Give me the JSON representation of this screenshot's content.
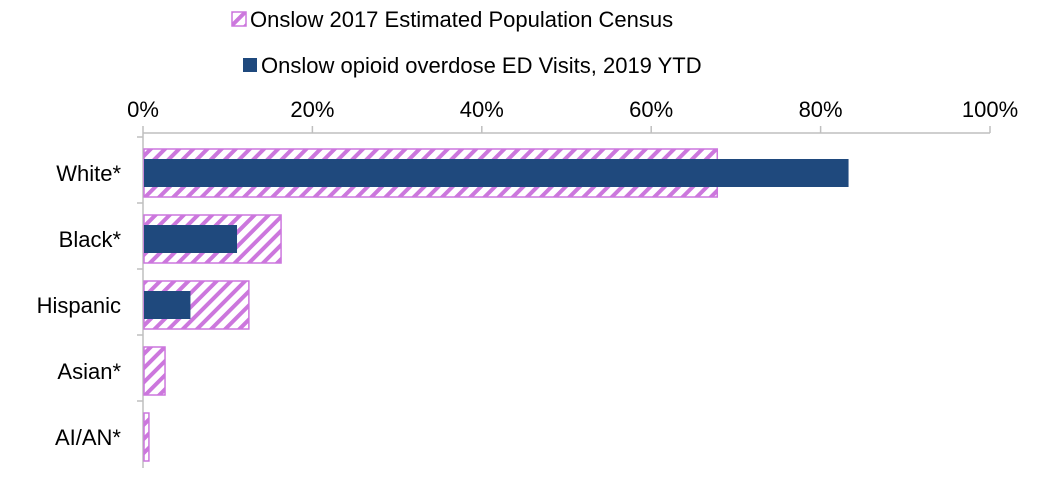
{
  "chart_data": {
    "type": "bar",
    "orientation": "horizontal",
    "categories": [
      "White*",
      "Black*",
      "Hispanic",
      "Asian*",
      "AI/AN*"
    ],
    "series": [
      {
        "name": "Onslow 2017 Estimated Population Census",
        "values": [
          67.8,
          16.3,
          12.5,
          2.6,
          0.7
        ],
        "color": "#cc77dd",
        "fill": "diagonal-hatch"
      },
      {
        "name": "Onslow opioid overdose ED Visits, 2019 YTD",
        "values": [
          83.3,
          11.1,
          5.6,
          0,
          0
        ],
        "color": "#1f497d",
        "fill": "solid"
      }
    ],
    "xlim": [
      0,
      100
    ],
    "xticks": [
      "0%",
      "20%",
      "40%",
      "60%",
      "80%",
      "100%"
    ],
    "xaxis_position": "top",
    "legend_position": "top",
    "grid": false
  }
}
